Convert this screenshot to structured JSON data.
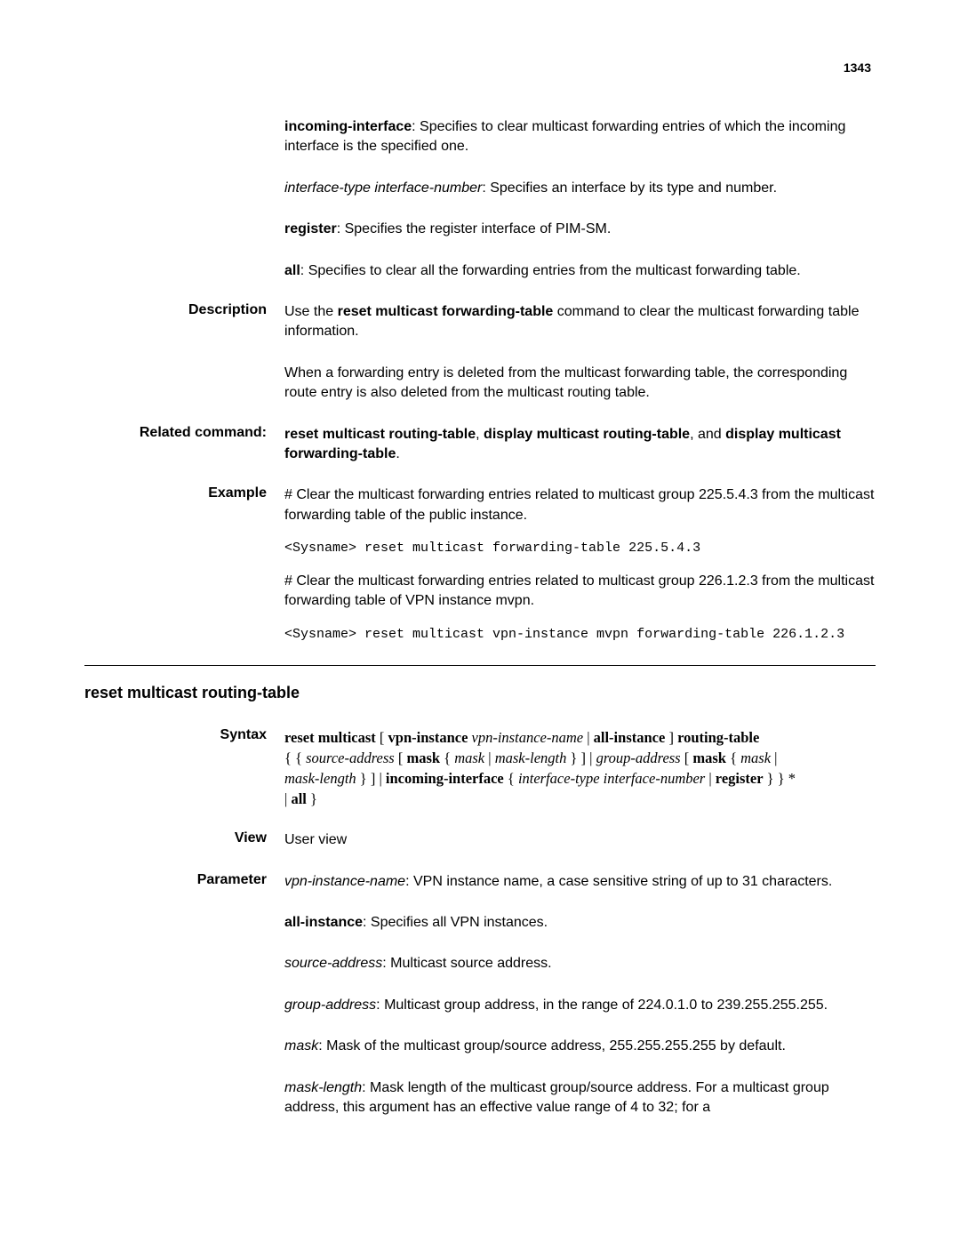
{
  "pageNumber": "1343",
  "top": {
    "incomingInterface": {
      "label": "incoming-interface",
      "text": ": Specifies to clear multicast forwarding entries of which the incoming interface is the specified one."
    },
    "interfaceType": {
      "italic": "interface-type interface-number",
      "text": ": Specifies an interface by its type and number."
    },
    "register": {
      "label": "register",
      "text": ": Specifies the register interface of PIM-SM."
    },
    "all": {
      "label": "all",
      "text": ": Specifies to clear all the forwarding entries from the multicast forwarding table."
    }
  },
  "description": {
    "heading": "Description",
    "text1a": "Use the ",
    "text1b": "reset multicast forwarding-table",
    "text1c": " command to clear the multicast forwarding table information.",
    "text2": "When a forwarding entry is deleted from the multicast forwarding table, the corresponding route entry is also deleted from the multicast routing table."
  },
  "related": {
    "heading": "Related command:",
    "b1": "reset multicast routing-table",
    "t1": ", ",
    "b2": "display multicast routing-table",
    "t2": ", and ",
    "b3": "display multicast forwarding-table",
    "t3": "."
  },
  "example": {
    "heading": "Example",
    "p1": "# Clear the multicast forwarding entries related to multicast group 225.5.4.3 from the multicast forwarding table of the public instance.",
    "c1": "<Sysname> reset multicast forwarding-table 225.5.4.3",
    "p2": "# Clear the multicast forwarding entries related to multicast group 226.1.2.3 from the multicast forwarding table of VPN instance mvpn.",
    "c2": "<Sysname> reset multicast vpn-instance mvpn forwarding-table 226.1.2.3"
  },
  "sectionTitle": "reset multicast routing-table",
  "syntax": {
    "heading": "Syntax",
    "l1": {
      "b1": "reset multicast",
      "t1": " [ ",
      "b2": "vpn-instance",
      "t2": " ",
      "i1": "vpn-instance-name",
      "t3": " | ",
      "b3": "all-instance",
      "t4": " ] ",
      "b4": "routing-table"
    },
    "l2": {
      "t1": "{ { ",
      "i1": "source-address",
      "t2": " [ ",
      "b1": "mask",
      "t3": " { ",
      "i2": "mask",
      "t4": " | ",
      "i3": "mask-length",
      "t5": " } ] | ",
      "i4": "group-address",
      "t6": " [ ",
      "b2": "mask",
      "t7": " { ",
      "i5": "mask",
      "t8": " |"
    },
    "l3": {
      "i1": "mask-length",
      "t1": " } ] | ",
      "b1": "incoming-interface",
      "t2": " { ",
      "i2": "interface-type interface-number",
      "t3": " | ",
      "b2": "register",
      "t4": " } } *"
    },
    "l4": {
      "t1": "| ",
      "b1": "all",
      "t2": " }"
    }
  },
  "view": {
    "heading": "View",
    "text": "User view"
  },
  "parameter": {
    "heading": "Parameter",
    "vpn": {
      "i": "vpn-instance-name",
      "t": ": VPN instance name, a case sensitive string of up to 31 characters."
    },
    "allInstance": {
      "b": "all-instance",
      "t": ": Specifies all VPN instances."
    },
    "source": {
      "i": "source-address",
      "t": ": Multicast source address."
    },
    "group": {
      "i": "group-address",
      "t": ": Multicast group address, in the range of 224.0.1.0 to 239.255.255.255."
    },
    "mask": {
      "i": "mask",
      "t": ": Mask of the multicast group/source address, 255.255.255.255 by default."
    },
    "maskLength": {
      "i": "mask-length",
      "t": ": Mask length of the multicast group/source address. For a multicast group address, this argument has an effective value range of 4 to 32; for a"
    }
  }
}
